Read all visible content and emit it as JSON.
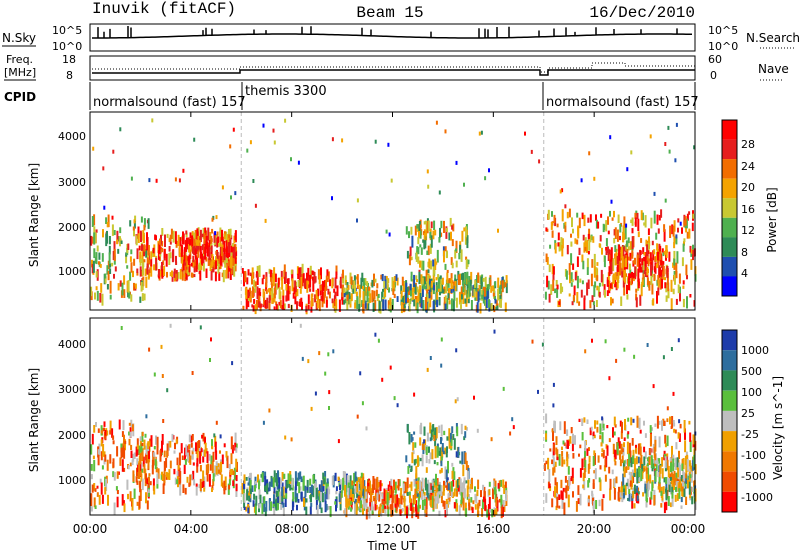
{
  "header": {
    "station": "Inuvik (fitACF)",
    "beam": "Beam 15",
    "date": "16/Dec/2010"
  },
  "top_panels": {
    "nsky_label": "N.Sky",
    "nsky_ticks": [
      "10^5",
      "10^0"
    ],
    "nsearch_label": "N.Search",
    "nsearch_ticks": [
      "10^5",
      "10^0"
    ],
    "freq_label_line1": "Freq.",
    "freq_label_line2": "[MHz]",
    "freq_ticks": [
      "18",
      "8"
    ],
    "nave_label": "Nave",
    "nave_ticks": [
      "60",
      "0"
    ],
    "cpid_label": "CPID",
    "cpid_segments": [
      {
        "label": "normalsound (fast) 157",
        "start": 0.0
      },
      {
        "label": "themis 3300",
        "start": 6.0
      },
      {
        "label": "normalsound (fast) 157",
        "start": 18.0
      }
    ]
  },
  "chart_data": [
    {
      "type": "heatmap",
      "title": "",
      "xlabel": "",
      "ylabel": "Slant Range [km]",
      "xlim": [
        0,
        24
      ],
      "ylim": [
        180,
        4500
      ],
      "yticks": [
        "1000",
        "2000",
        "3000",
        "4000"
      ],
      "colorbar_label": "Power [dB]",
      "colorbar_ticks": [
        "4",
        "8",
        "12",
        "16",
        "20",
        "24",
        "28"
      ],
      "colors": [
        "#0000ff",
        "#1f4fb0",
        "#2e8b57",
        "#4fb04f",
        "#c8c832",
        "#f4a300",
        "#f26d00",
        "#e61e1e",
        "#ff0000"
      ],
      "vlines": [
        6.0,
        18.0
      ],
      "echo_regions": [
        {
          "t0": 0.0,
          "t1": 2.3,
          "r0": 400,
          "r1": 2200,
          "level": 0.55
        },
        {
          "t0": 1.8,
          "t1": 5.8,
          "r0": 900,
          "r1": 1900,
          "level": 0.75
        },
        {
          "t0": 3.6,
          "t1": 5.8,
          "r0": 1100,
          "r1": 1800,
          "level": 0.8
        },
        {
          "t0": 6.0,
          "t1": 10.0,
          "r0": 200,
          "r1": 1050,
          "level": 0.8
        },
        {
          "t0": 10.0,
          "t1": 16.5,
          "r0": 200,
          "r1": 900,
          "level": 0.45
        },
        {
          "t0": 12.5,
          "t1": 15.0,
          "r0": 600,
          "r1": 2100,
          "level": 0.5
        },
        {
          "t0": 18.0,
          "t1": 24.0,
          "r0": 300,
          "r1": 2300,
          "level": 0.65
        },
        {
          "t0": 20.5,
          "t1": 23.0,
          "r0": 700,
          "r1": 1500,
          "level": 0.85
        }
      ]
    },
    {
      "type": "heatmap",
      "title": "",
      "xlabel": "Time UT",
      "ylabel": "Slant Range [km]",
      "xlim": [
        0,
        24
      ],
      "ylim": [
        180,
        4500
      ],
      "xticks": [
        "00:00",
        "04:00",
        "08:00",
        "12:00",
        "16:00",
        "20:00",
        "00:00"
      ],
      "yticks": [
        "1000",
        "2000",
        "3000",
        "4000"
      ],
      "colorbar_label": "Velocity [m s^-1]",
      "colorbar_ticks": [
        "1000",
        "500",
        "100",
        "25",
        "-25",
        "-100",
        "-500",
        "-1000"
      ],
      "colors": [
        "#1e3caa",
        "#2e6e9e",
        "#2e8b57",
        "#5abf3c",
        "#bebebe",
        "#f0a000",
        "#f07800",
        "#f04b00",
        "#ff0000"
      ],
      "vlines": [
        6.0,
        18.0
      ],
      "echo_regions": [
        {
          "t0": 0.0,
          "t1": 2.3,
          "r0": 300,
          "r1": 2200,
          "level": 0.65
        },
        {
          "t0": 1.8,
          "t1": 5.8,
          "r0": 700,
          "r1": 1900,
          "level": 0.7
        },
        {
          "t0": 6.0,
          "t1": 11.0,
          "r0": 250,
          "r1": 1050,
          "level": 0.3
        },
        {
          "t0": 10.0,
          "t1": 16.5,
          "r0": 200,
          "r1": 900,
          "level": 0.65
        },
        {
          "t0": 12.5,
          "t1": 15.0,
          "r0": 600,
          "r1": 2100,
          "level": 0.4
        },
        {
          "t0": 18.0,
          "t1": 24.0,
          "r0": 300,
          "r1": 2300,
          "level": 0.7
        },
        {
          "t0": 21.0,
          "t1": 24.0,
          "r0": 500,
          "r1": 1400,
          "level": 0.45
        }
      ]
    }
  ]
}
